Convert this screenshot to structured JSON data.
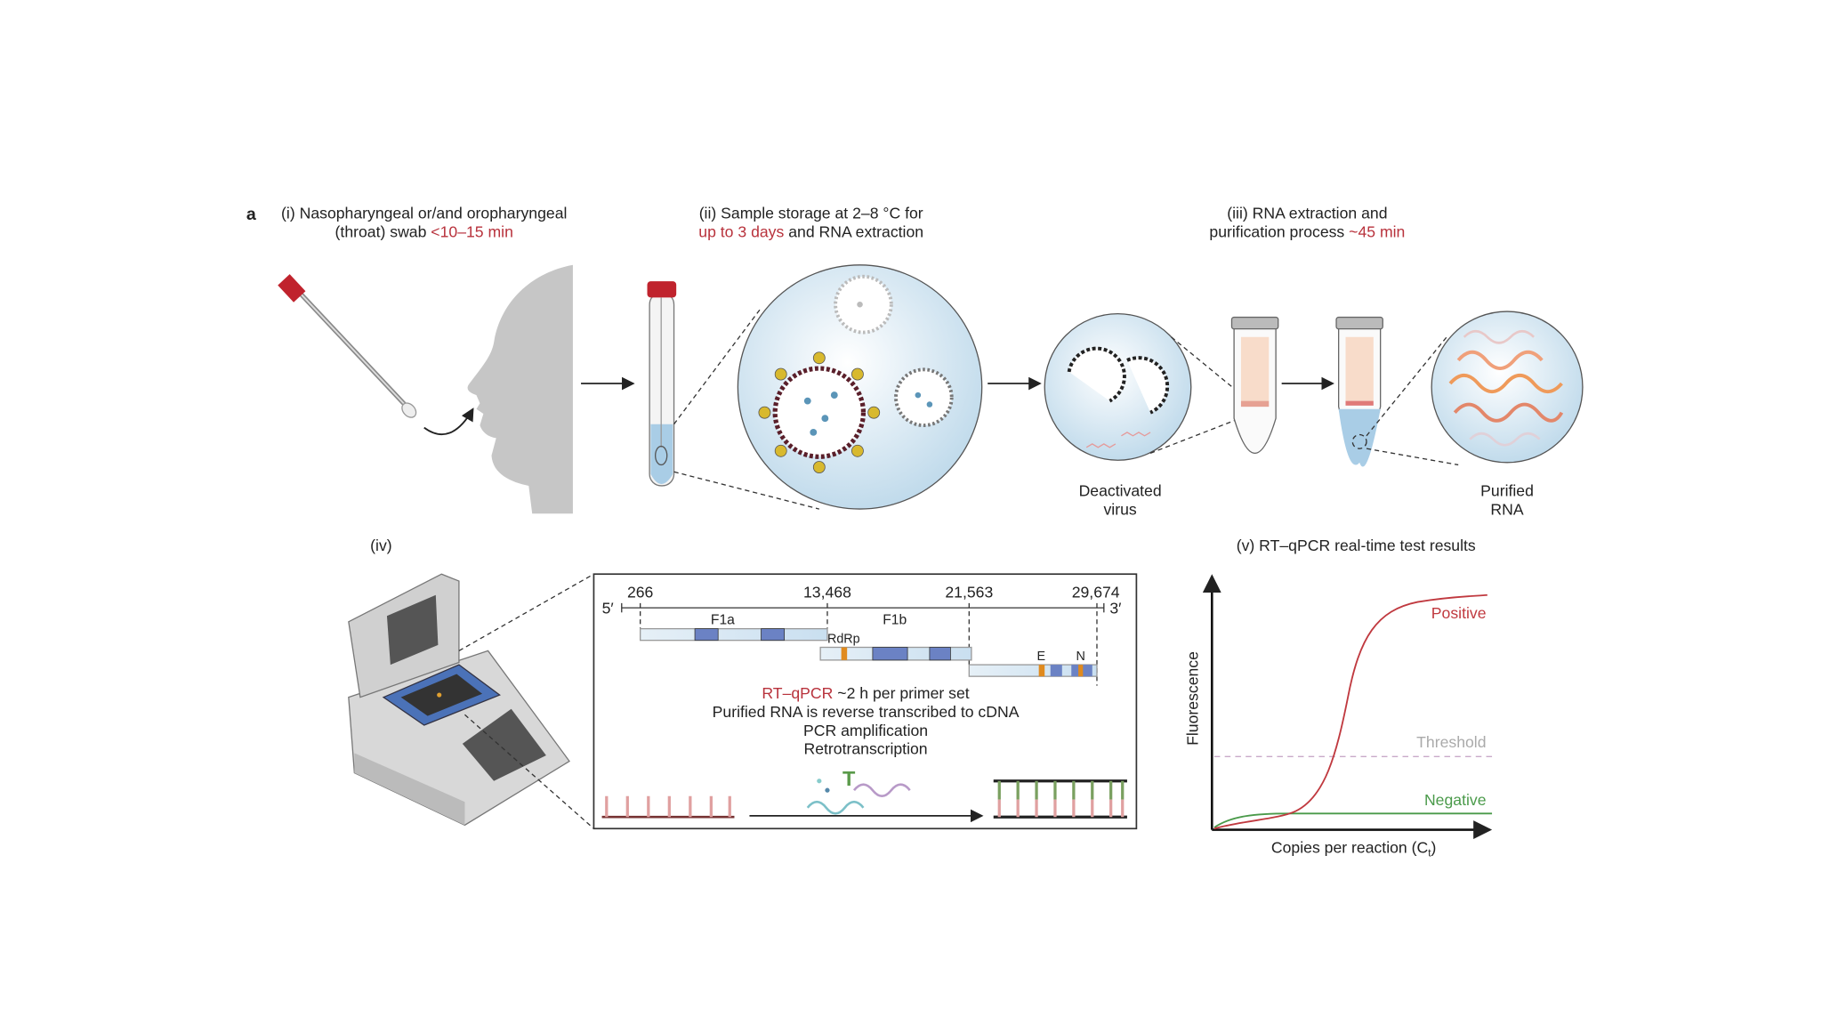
{
  "panel_letter": "a",
  "steps": {
    "i": {
      "line1": "(i) Nasopharyngeal or/and oropharyngeal",
      "line2_pre": "(throat) swab ",
      "line2_time": "<10–15 min"
    },
    "ii": {
      "line1": "(ii) Sample storage at 2–8 °C for",
      "line2_time": "up to 3 days",
      "line2_post": " and RNA extraction"
    },
    "iii": {
      "line1": "(iii) RNA extraction and",
      "line2_pre": "purification process ",
      "line2_time": "~45 min"
    },
    "iv": {
      "label": "(iv)"
    },
    "v": {
      "title": "(v) RT–qPCR real-time test results"
    }
  },
  "labels": {
    "deactivated_virus": [
      "Deactivated",
      "virus"
    ],
    "purified_rna": [
      "Purified",
      "RNA"
    ]
  },
  "genome": {
    "five_prime": "5′",
    "three_prime": "3′",
    "positions": [
      "266",
      "13,468",
      "21,563",
      "29,674"
    ],
    "segments": {
      "f1a": "F1a",
      "f1b": "F1b",
      "rdrp": "RdRp",
      "e": "E",
      "n": "N"
    }
  },
  "rtqpcr": {
    "line1_red": "RT–qPCR",
    "line1_rest": " ~2 h per primer set",
    "line2": "Purified RNA is reverse transcribed to cDNA",
    "line3": "PCR amplification",
    "line4": "Retrotranscription"
  },
  "colors": {
    "accent_red": "#b8323c",
    "positive": "#c0393f",
    "negative": "#4a9a4a",
    "threshold": "#c9a9c9",
    "gene_blue": "#6b82c4",
    "gene_orange": "#e08a1e"
  },
  "chart_data": {
    "type": "line",
    "title": "(v) RT–qPCR real-time test results",
    "xlabel": "Copies per reaction (C",
    "xlabel_sub": "t",
    "xlabel_end": ")",
    "ylabel": "Fluorescence",
    "series": [
      {
        "name": "Positive",
        "shape": "sigmoid"
      },
      {
        "name": "Negative",
        "shape": "flat"
      }
    ],
    "threshold_label": "Threshold",
    "grid": false
  }
}
